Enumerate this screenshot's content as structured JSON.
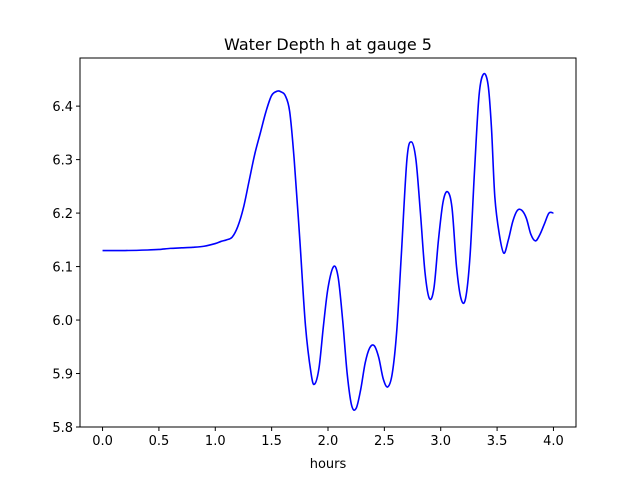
{
  "chart_data": {
    "type": "line",
    "title": "Water Depth h at gauge 5",
    "xlabel": "hours",
    "ylabel": "",
    "xlim": [
      -0.2,
      4.2
    ],
    "ylim": [
      5.8,
      6.49
    ],
    "xticks": [
      0.0,
      0.5,
      1.0,
      1.5,
      2.0,
      2.5,
      3.0,
      3.5,
      4.0
    ],
    "xtick_labels": [
      "0.0",
      "0.5",
      "1.0",
      "1.5",
      "2.0",
      "2.5",
      "3.0",
      "3.5",
      "4.0"
    ],
    "yticks": [
      5.8,
      5.9,
      6.0,
      6.1,
      6.2,
      6.3,
      6.4
    ],
    "ytick_labels": [
      "5.8",
      "5.9",
      "6.0",
      "6.1",
      "6.2",
      "6.3",
      "6.4"
    ],
    "grid": false,
    "line_color": "#0000ff",
    "series": [
      {
        "name": "",
        "x": [
          0.0,
          0.2,
          0.4,
          0.5,
          0.6,
          0.7,
          0.8,
          0.9,
          1.0,
          1.05,
          1.1,
          1.15,
          1.2,
          1.25,
          1.3,
          1.35,
          1.4,
          1.45,
          1.5,
          1.55,
          1.58,
          1.62,
          1.66,
          1.7,
          1.75,
          1.8,
          1.85,
          1.88,
          1.92,
          1.96,
          2.0,
          2.05,
          2.09,
          2.13,
          2.17,
          2.21,
          2.25,
          2.29,
          2.33,
          2.37,
          2.41,
          2.45,
          2.49,
          2.53,
          2.57,
          2.61,
          2.65,
          2.7,
          2.74,
          2.78,
          2.82,
          2.86,
          2.9,
          2.94,
          2.98,
          3.02,
          3.06,
          3.1,
          3.14,
          3.18,
          3.22,
          3.26,
          3.3,
          3.34,
          3.38,
          3.42,
          3.45,
          3.48,
          3.52,
          3.56,
          3.6,
          3.64,
          3.68,
          3.72,
          3.76,
          3.8,
          3.84,
          3.88,
          3.92,
          3.96,
          4.0
        ],
        "y": [
          6.13,
          6.13,
          6.131,
          6.132,
          6.134,
          6.135,
          6.136,
          6.138,
          6.143,
          6.147,
          6.15,
          6.155,
          6.175,
          6.21,
          6.26,
          6.31,
          6.35,
          6.39,
          6.42,
          6.428,
          6.427,
          6.42,
          6.39,
          6.3,
          6.15,
          5.99,
          5.9,
          5.88,
          5.91,
          5.99,
          6.06,
          6.1,
          6.08,
          6.0,
          5.9,
          5.84,
          5.835,
          5.87,
          5.92,
          5.948,
          5.952,
          5.93,
          5.89,
          5.875,
          5.9,
          5.98,
          6.12,
          6.3,
          6.333,
          6.3,
          6.2,
          6.09,
          6.04,
          6.06,
          6.15,
          6.22,
          6.24,
          6.21,
          6.1,
          6.04,
          6.04,
          6.12,
          6.28,
          6.42,
          6.46,
          6.44,
          6.36,
          6.23,
          6.16,
          6.125,
          6.15,
          6.185,
          6.205,
          6.205,
          6.19,
          6.16,
          6.148,
          6.16,
          6.18,
          6.2,
          6.2
        ]
      }
    ]
  }
}
